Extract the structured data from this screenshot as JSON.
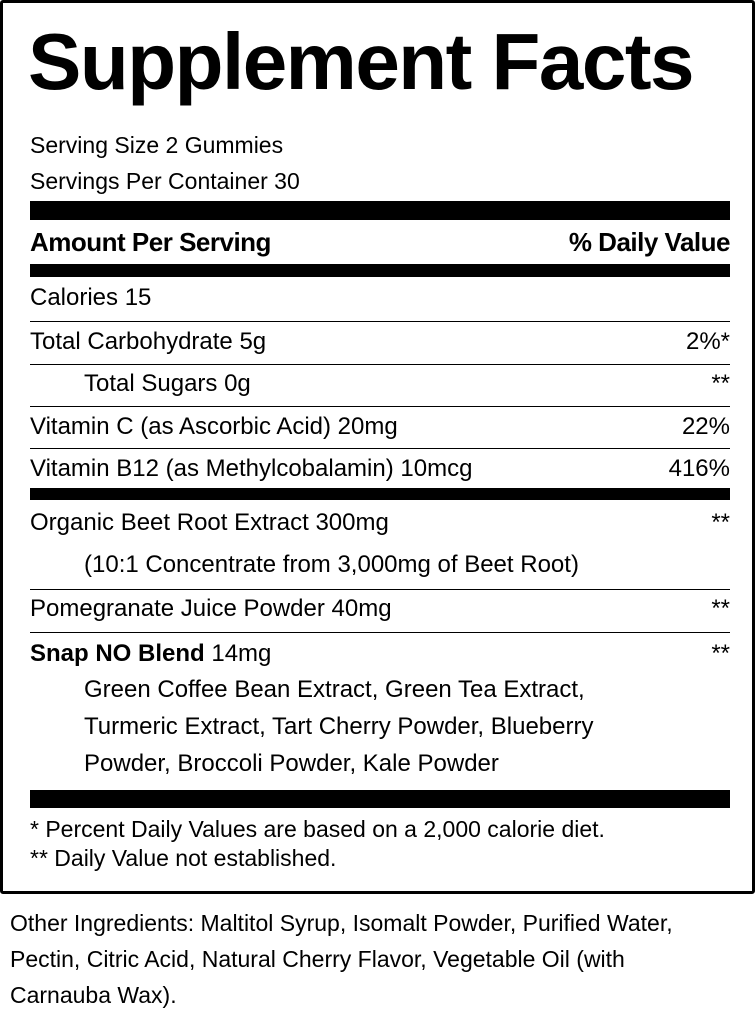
{
  "title": "Supplement Facts",
  "serving_size": "Serving Size 2 Gummies",
  "servings_per_container": "Servings Per Container 30",
  "header": {
    "amount": "Amount Per Serving",
    "dv": "% Daily Value"
  },
  "nutrients": [
    {
      "name": "Calories 15",
      "dv": ""
    },
    {
      "name": "Total Carbohydrate 5g",
      "dv": "2%*"
    },
    {
      "name": "Total Sugars 0g",
      "dv": "**"
    },
    {
      "name": "Vitamin C (as Ascorbic Acid) 20mg",
      "dv": "22%"
    },
    {
      "name": "Vitamin B12 (as Methylcobalamin) 10mcg",
      "dv": "416%"
    }
  ],
  "ingredients": {
    "beet": {
      "name": "Organic Beet Root Extract 300mg",
      "dv": "**",
      "detail": "(10:1 Concentrate from 3,000mg of Beet Root)"
    },
    "pomegranate": {
      "name": "Pomegranate Juice Powder 40mg",
      "dv": "**"
    },
    "blend": {
      "name": "Snap NO Blend",
      "amount": " 14mg",
      "dv": "**",
      "lines": [
        "Green Coffee Bean Extract, Green Tea Extract,",
        "Turmeric Extract, Tart Cherry Powder, Blueberry",
        "Powder, Broccoli Powder, Kale Powder"
      ]
    }
  },
  "footnotes": [
    "* Percent Daily Values are based on a 2,000 calorie diet.",
    "** Daily Value not established."
  ],
  "other_ingredients": "Other Ingredients: Maltitol Syrup, Isomalt Powder, Purified Water, Pectin, Citric Acid, Natural Cherry Flavor, Vegetable Oil (with Carnauba Wax)."
}
